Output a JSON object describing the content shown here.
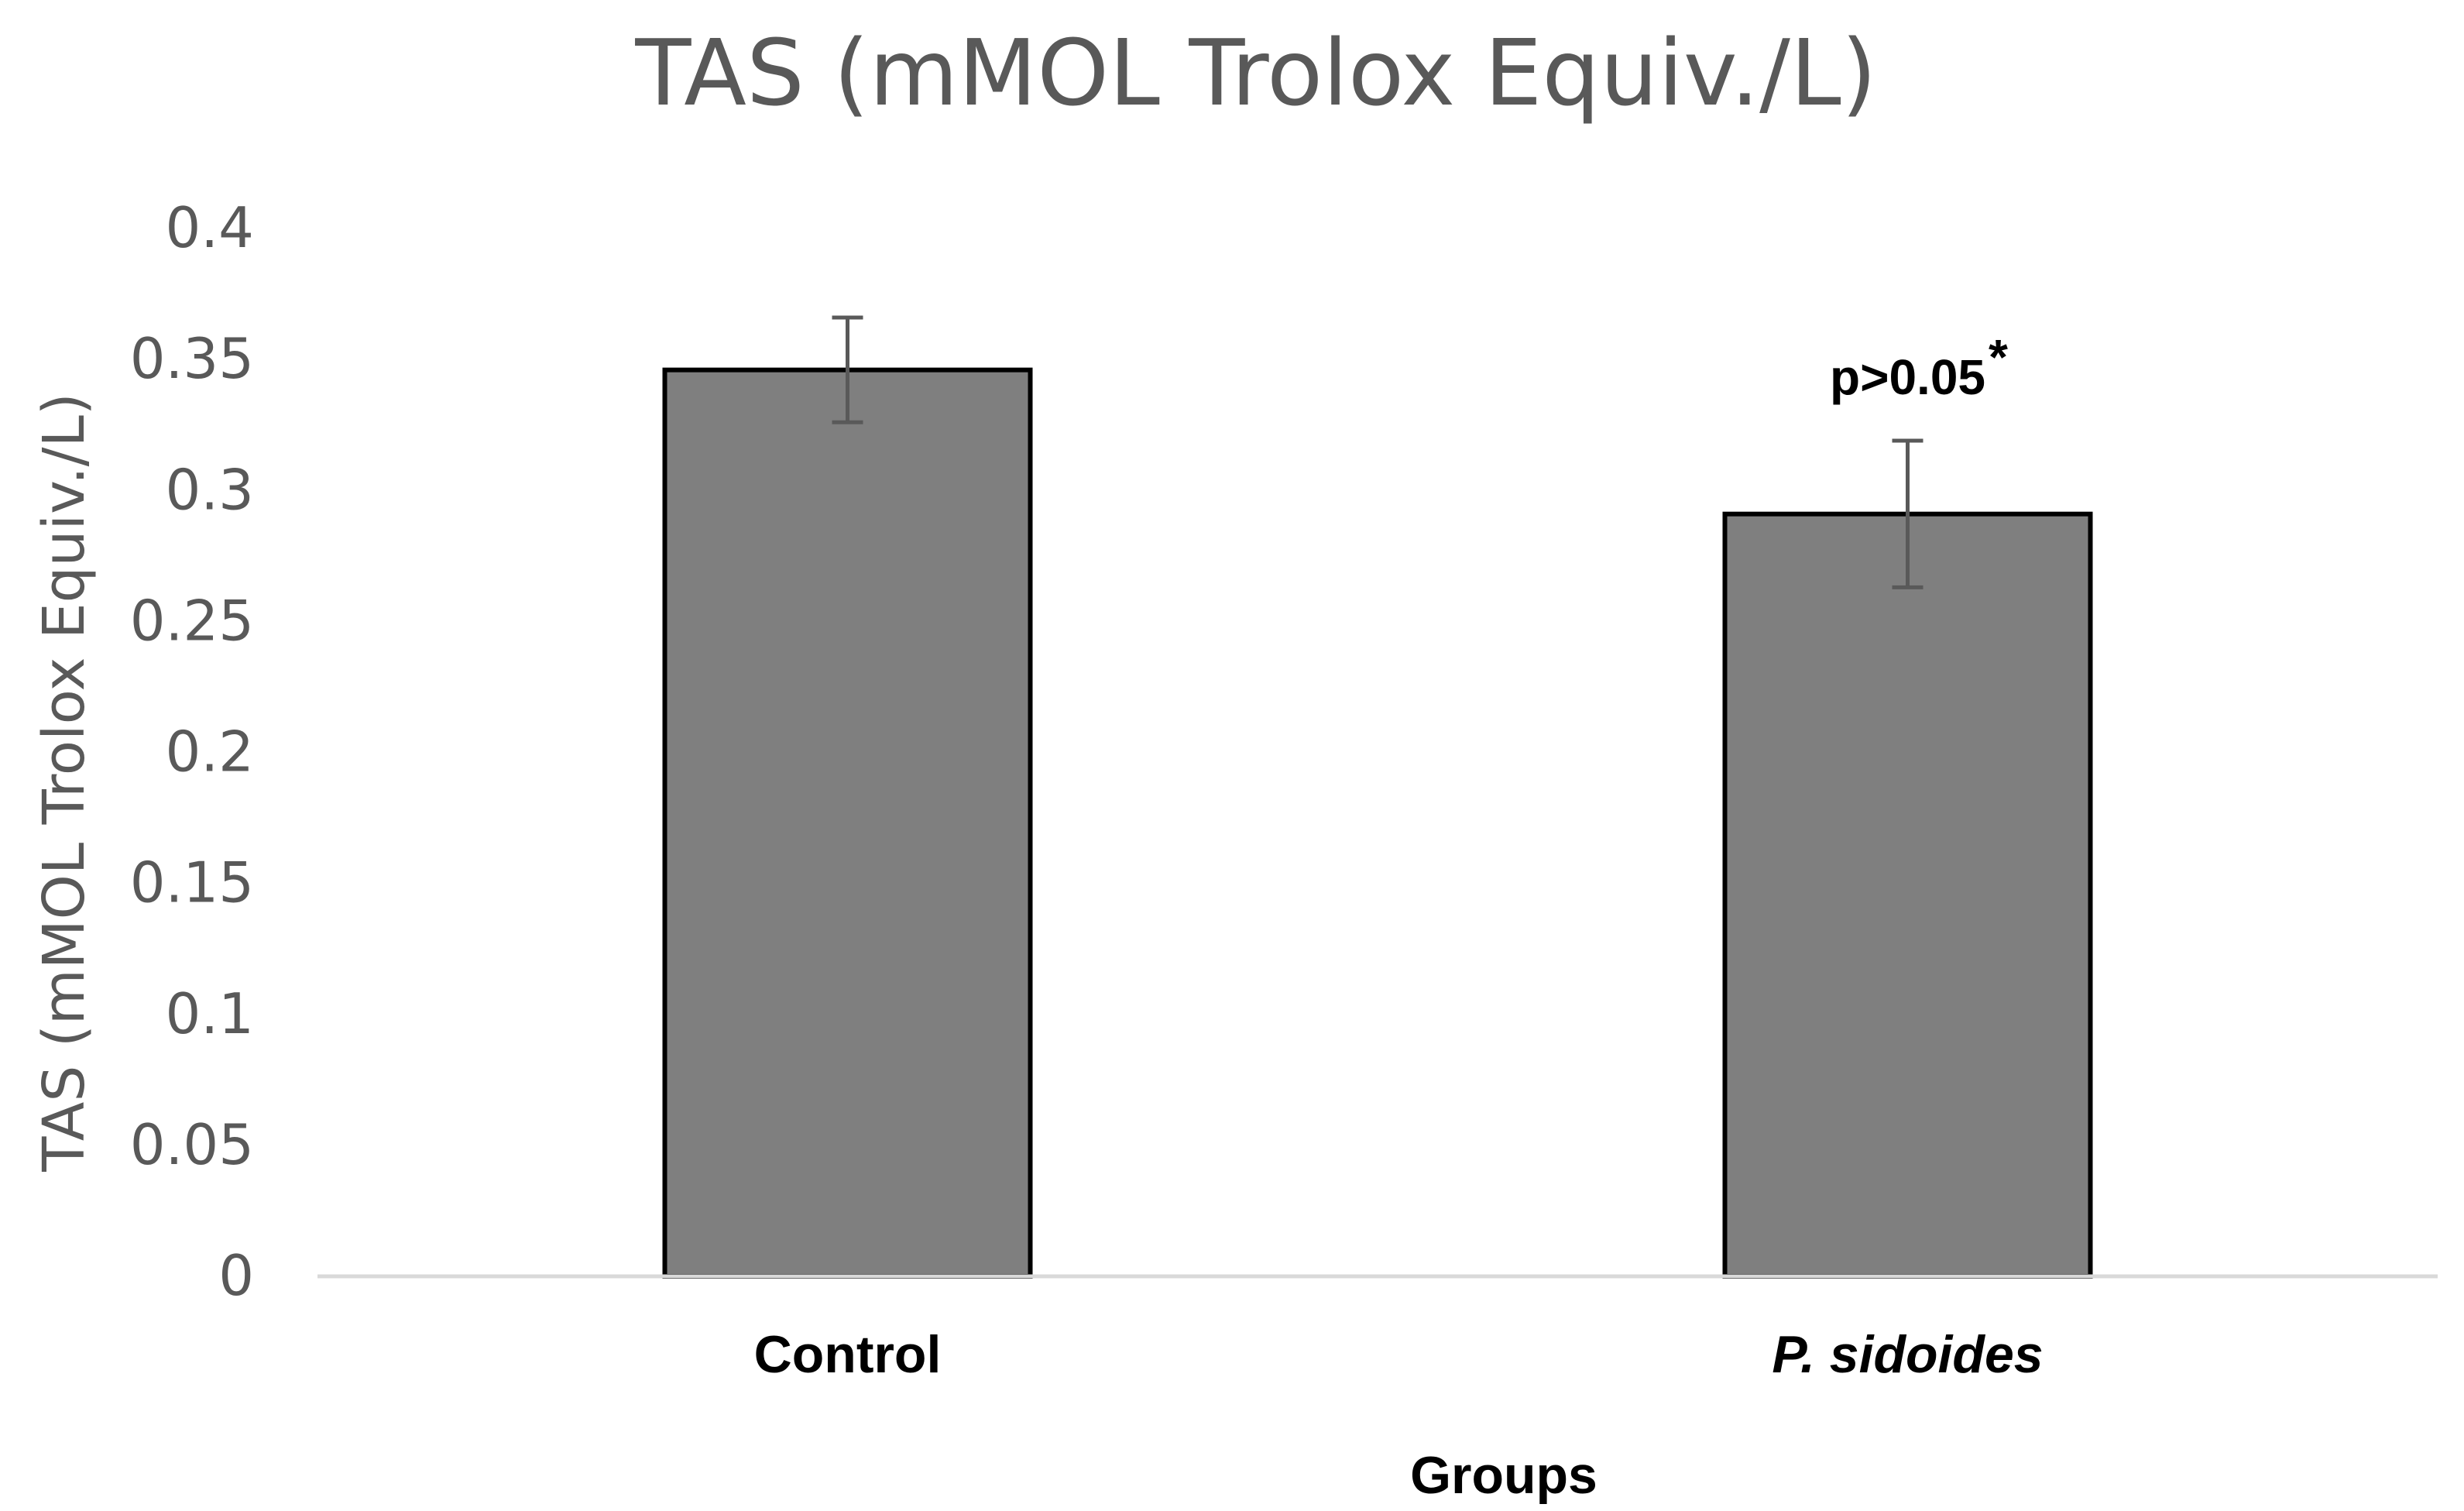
{
  "chart_data": {
    "type": "bar",
    "title": "TAS (mMOL Trolox Equiv./L)",
    "xlabel": "Groups",
    "ylabel": "TAS (mMOL Trolox Equiv./L)",
    "categories": [
      "Control",
      "P. sidoides"
    ],
    "values": [
      0.346,
      0.291
    ],
    "errors": [
      0.02,
      0.028
    ],
    "ylim": [
      0,
      0.4
    ],
    "yticks": [
      "0",
      "0.05",
      "0.1",
      "0.15",
      "0.2",
      "0.25",
      "0.3",
      "0.35",
      "0.4"
    ],
    "grid": false,
    "annotations": [
      {
        "category": "P. sidoides",
        "text": "p>0.05",
        "superscript": "*"
      }
    ],
    "colors": {
      "bar_fill": "#7f7f7f",
      "bar_stroke": "#000000",
      "error_bar": "#595959",
      "axis_line": "#d9d9d9",
      "text_gray": "#595959"
    }
  }
}
